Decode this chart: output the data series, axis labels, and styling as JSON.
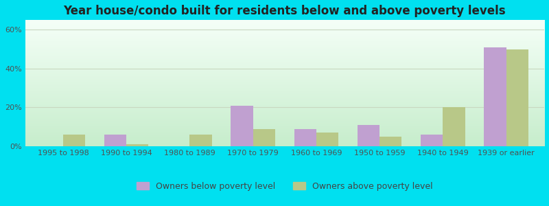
{
  "categories": [
    "1995 to 1998",
    "1990 to 1994",
    "1980 to 1989",
    "1970 to 1979",
    "1960 to 1969",
    "1950 to 1959",
    "1940 to 1949",
    "1939 or earlier"
  ],
  "below_poverty": [
    0,
    6,
    0,
    21,
    9,
    11,
    6,
    51
  ],
  "above_poverty": [
    6,
    1,
    6,
    9,
    7,
    5,
    20,
    50
  ],
  "below_color": "#c0a0d0",
  "above_color": "#b8c888",
  "title": "Year house/condo built for residents below and above poverty levels",
  "title_fontsize": 12,
  "ylim": [
    0,
    65
  ],
  "yticks": [
    0,
    20,
    40,
    60
  ],
  "ytick_labels": [
    "0%",
    "20%",
    "40%",
    "60%"
  ],
  "legend_below": "Owners below poverty level",
  "legend_above": "Owners above poverty level",
  "background_outer": "#00e0f0",
  "bar_width": 0.35,
  "grid_color": "#c8d8c0",
  "tick_label_fontsize": 8,
  "legend_fontsize": 9,
  "bg_top_left": "#d4eedd",
  "bg_top_right": "#eafaf0",
  "bg_bottom_left": "#c0e8cc",
  "bg_bottom_right": "#d8f4e0"
}
